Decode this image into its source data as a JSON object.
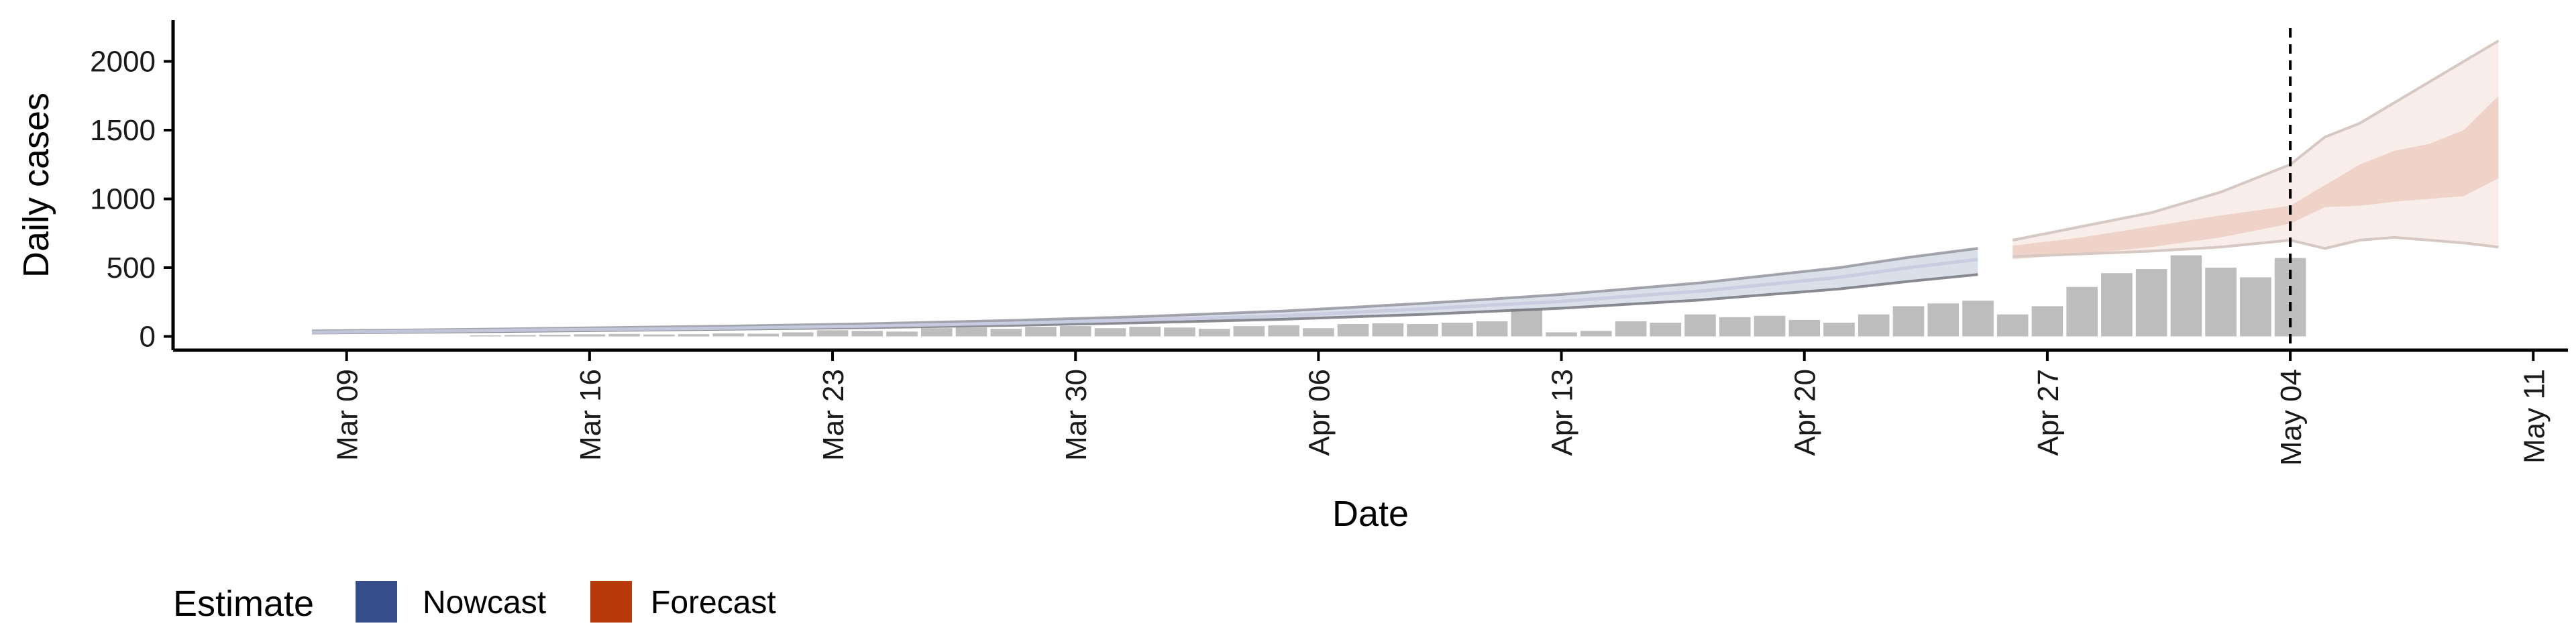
{
  "chart_data": {
    "type": "bar",
    "xlabel": "Date",
    "ylabel": "Daily cases",
    "x_ticks": [
      "Mar 09",
      "Mar 16",
      "Mar 23",
      "Mar 30",
      "Apr 06",
      "Apr 13",
      "Apr 20",
      "Apr 27",
      "May 04",
      "May 11"
    ],
    "y_ticks": [
      0,
      500,
      1000,
      1500,
      2000
    ],
    "ylim": [
      -100,
      2300
    ],
    "xlim": [
      "2020-03-04",
      "2020-05-12"
    ],
    "grid": false,
    "reference_line": {
      "date": "2020-05-04",
      "style": "dashed"
    },
    "bars": {
      "name": "Daily cases",
      "color": "#bdbdbd",
      "x": [
        "2020-03-13",
        "2020-03-14",
        "2020-03-15",
        "2020-03-16",
        "2020-03-17",
        "2020-03-18",
        "2020-03-19",
        "2020-03-20",
        "2020-03-21",
        "2020-03-22",
        "2020-03-23",
        "2020-03-24",
        "2020-03-25",
        "2020-03-26",
        "2020-03-27",
        "2020-03-28",
        "2020-03-29",
        "2020-03-30",
        "2020-03-31",
        "2020-04-01",
        "2020-04-02",
        "2020-04-03",
        "2020-04-04",
        "2020-04-05",
        "2020-04-06",
        "2020-04-07",
        "2020-04-08",
        "2020-04-09",
        "2020-04-10",
        "2020-04-11",
        "2020-04-12",
        "2020-04-13",
        "2020-04-14",
        "2020-04-15",
        "2020-04-16",
        "2020-04-17",
        "2020-04-18",
        "2020-04-19",
        "2020-04-20",
        "2020-04-21",
        "2020-04-22",
        "2020-04-23",
        "2020-04-24",
        "2020-04-25",
        "2020-04-26",
        "2020-04-27",
        "2020-04-28",
        "2020-04-29",
        "2020-04-30",
        "2020-05-01",
        "2020-05-02",
        "2020-05-03",
        "2020-05-04"
      ],
      "values": [
        8,
        10,
        12,
        15,
        18,
        14,
        16,
        22,
        20,
        30,
        45,
        40,
        35,
        60,
        65,
        55,
        70,
        75,
        60,
        70,
        65,
        55,
        75,
        80,
        60,
        90,
        95,
        90,
        100,
        110,
        200,
        30,
        40,
        110,
        100,
        160,
        140,
        150,
        120,
        100,
        160,
        220,
        240,
        260,
        160,
        220,
        360,
        460,
        490,
        590,
        500,
        430,
        570
      ]
    },
    "series": [
      {
        "name": "Nowcast",
        "color": "#354e8b",
        "x": [
          "2020-03-08",
          "2020-03-12",
          "2020-03-16",
          "2020-03-20",
          "2020-03-24",
          "2020-03-28",
          "2020-04-01",
          "2020-04-05",
          "2020-04-09",
          "2020-04-13",
          "2020-04-17",
          "2020-04-21",
          "2020-04-23",
          "2020-04-25"
        ],
        "median": [
          30,
          40,
          50,
          60,
          75,
          95,
          120,
          150,
          200,
          255,
          330,
          430,
          500,
          560
        ],
        "lower90": [
          25,
          32,
          42,
          52,
          64,
          80,
          100,
          125,
          160,
          205,
          265,
          345,
          400,
          450
        ],
        "upper90": [
          40,
          50,
          62,
          75,
          92,
          115,
          145,
          185,
          240,
          305,
          390,
          500,
          575,
          640
        ]
      },
      {
        "name": "Forecast",
        "color": "#b53a07",
        "x": [
          "2020-04-26",
          "2020-04-28",
          "2020-04-30",
          "2020-05-02",
          "2020-05-04",
          "2020-05-05",
          "2020-05-06",
          "2020-05-07",
          "2020-05-08",
          "2020-05-09",
          "2020-05-10"
        ],
        "lower50": [
          560,
          600,
          650,
          720,
          820,
          940,
          950,
          980,
          1000,
          1020,
          1150
        ],
        "upper50": [
          660,
          720,
          800,
          880,
          950,
          1100,
          1250,
          1350,
          1400,
          1500,
          1750
        ],
        "lower90": [
          580,
          600,
          620,
          650,
          700,
          640,
          700,
          720,
          700,
          680,
          650
        ],
        "upper90": [
          700,
          800,
          900,
          1050,
          1250,
          1450,
          1550,
          1700,
          1850,
          2000,
          2150
        ]
      }
    ],
    "legend": {
      "position": "bottom-left",
      "title": "Estimate",
      "items": [
        {
          "label": "Nowcast",
          "color": "#354e8b"
        },
        {
          "label": "Forecast",
          "color": "#b53a07"
        }
      ]
    }
  }
}
